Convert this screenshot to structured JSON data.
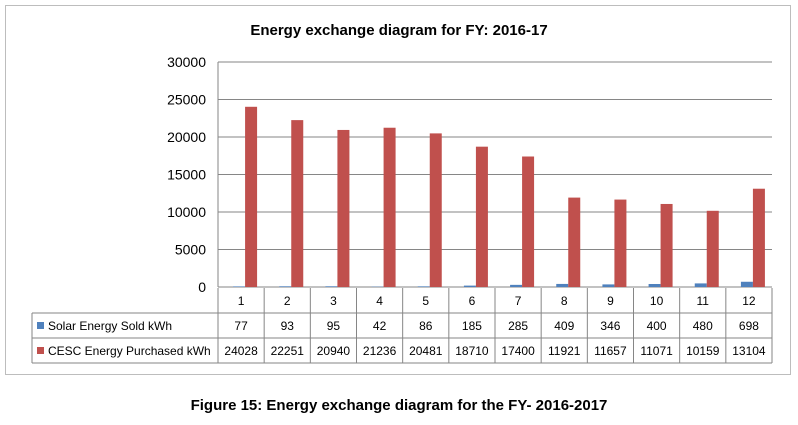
{
  "caption": "Figure 15: Energy exchange diagram for the FY- 2016-2017",
  "colors": {
    "solar": "#4f81bd",
    "cesc": "#c0504d",
    "grid": "#868686"
  },
  "chart_data": {
    "type": "bar",
    "title": "Energy exchange diagram for FY: 2016-17",
    "categories": [
      "1",
      "2",
      "3",
      "4",
      "5",
      "6",
      "7",
      "8",
      "9",
      "10",
      "11",
      "12"
    ],
    "ylim": [
      0,
      30000
    ],
    "yticks": [
      0,
      5000,
      10000,
      15000,
      20000,
      25000,
      30000
    ],
    "grid": true,
    "xlabel": "",
    "ylabel": "",
    "legend_position": "data-table",
    "series": [
      {
        "name": "Solar Energy Sold  kWh",
        "key": "solar",
        "values": [
          77,
          93,
          95,
          42,
          86,
          185,
          285,
          409,
          346,
          400,
          480,
          698
        ]
      },
      {
        "name": "CESC Energy  Purchased kWh",
        "key": "cesc",
        "values": [
          24028,
          22251,
          20940,
          21236,
          20481,
          18710,
          17400,
          11921,
          11657,
          11071,
          10159,
          13104
        ]
      }
    ]
  }
}
